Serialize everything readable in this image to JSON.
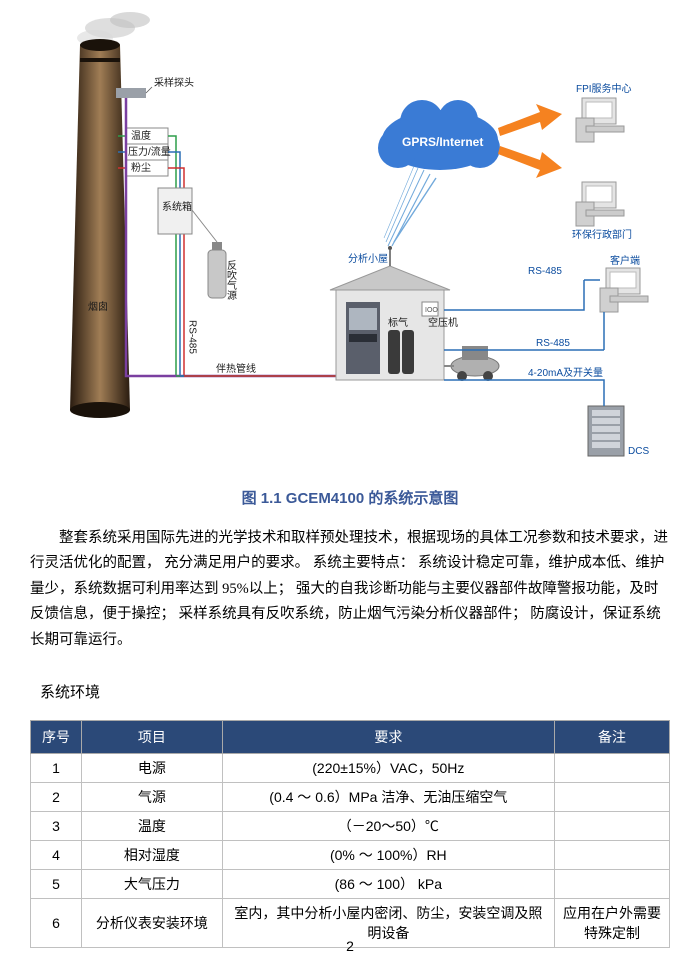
{
  "caption": "图 1.1 GCEM4100 的系统示意图",
  "paragraph": "整套系统采用国际先进的光学技术和取样预处理技术，根据现场的具体工况参数和技术要求，进行灵活优化的配置， 充分满足用户的要求。 系统主要特点： 系统设计稳定可靠，维护成本低、维护量少，系统数据可利用率达到 95%以上； 强大的自我诊断功能与主要仪器部件故障警报功能，及时反馈信息，便于操控； 采样系统具有反吹系统，防止烟气污染分析仪器部件； 防腐设计，保证系统长期可靠运行。",
  "section_heading": "系统环境",
  "table": {
    "columns": [
      "序号",
      "项目",
      "要求",
      "备注"
    ],
    "col_widths": [
      "8%",
      "22%",
      "52%",
      "18%"
    ],
    "rows": [
      [
        "1",
        "电源",
        "(220±15%）VAC，50Hz",
        ""
      ],
      [
        "2",
        "气源",
        "(0.4 ～ 0.6）MPa 洁净、无油压缩空气",
        ""
      ],
      [
        "3",
        "温度",
        "（－20～50）℃",
        ""
      ],
      [
        "4",
        "相对湿度",
        "(0% ～ 100%）RH",
        ""
      ],
      [
        "5",
        "大气压力",
        "(86 ～ 100） kPa",
        ""
      ],
      [
        "6",
        "分析仪表安装环境",
        "室内，其中分析小屋内密闭、防尘，安装空调及照明设备",
        "应用在户外需要特殊定制"
      ]
    ],
    "header_bg": "#2b4978",
    "header_fg": "#ffffff",
    "border_color": "#c0c0c0"
  },
  "diagram": {
    "labels": {
      "probe": "采样探头",
      "temp": "温度",
      "pressure": "压力/流量",
      "dust": "粉尘",
      "controlbox": "系统箱",
      "chimney": "烟囱",
      "blowback": "反吹气源",
      "rs485_left": "RS-485",
      "heatline": "伴热管线",
      "analysis_house": "分析小屋",
      "calgas": "标气",
      "compressor": "空压机",
      "cloud": "GPRS/Internet",
      "fpi": "FPI服务中心",
      "epb": "环保行政部门",
      "client": "客户端",
      "rs485_right": "RS-485",
      "rs485_right2": "RS-485",
      "signal": "4-20mA及开关量",
      "dcs": "DCS"
    },
    "colors": {
      "chimney_dark": "#3d2d1f",
      "chimney_light": "#8a6b4a",
      "smoke": "#c9c9c9",
      "line": "#2b6fb5",
      "cloud": "#2b6fb5",
      "cloud_text": "#ffffff",
      "arrow": "#f58220",
      "wire_green": "#2d9d4a",
      "wire_blue": "#2b6fb5",
      "wire_red": "#d03030",
      "wire_purple": "#7a3fa0",
      "house": "#d8d8d8",
      "analyzer": "#5a5f6b",
      "cabinet": "#8a8f99"
    }
  },
  "page_number": "2"
}
